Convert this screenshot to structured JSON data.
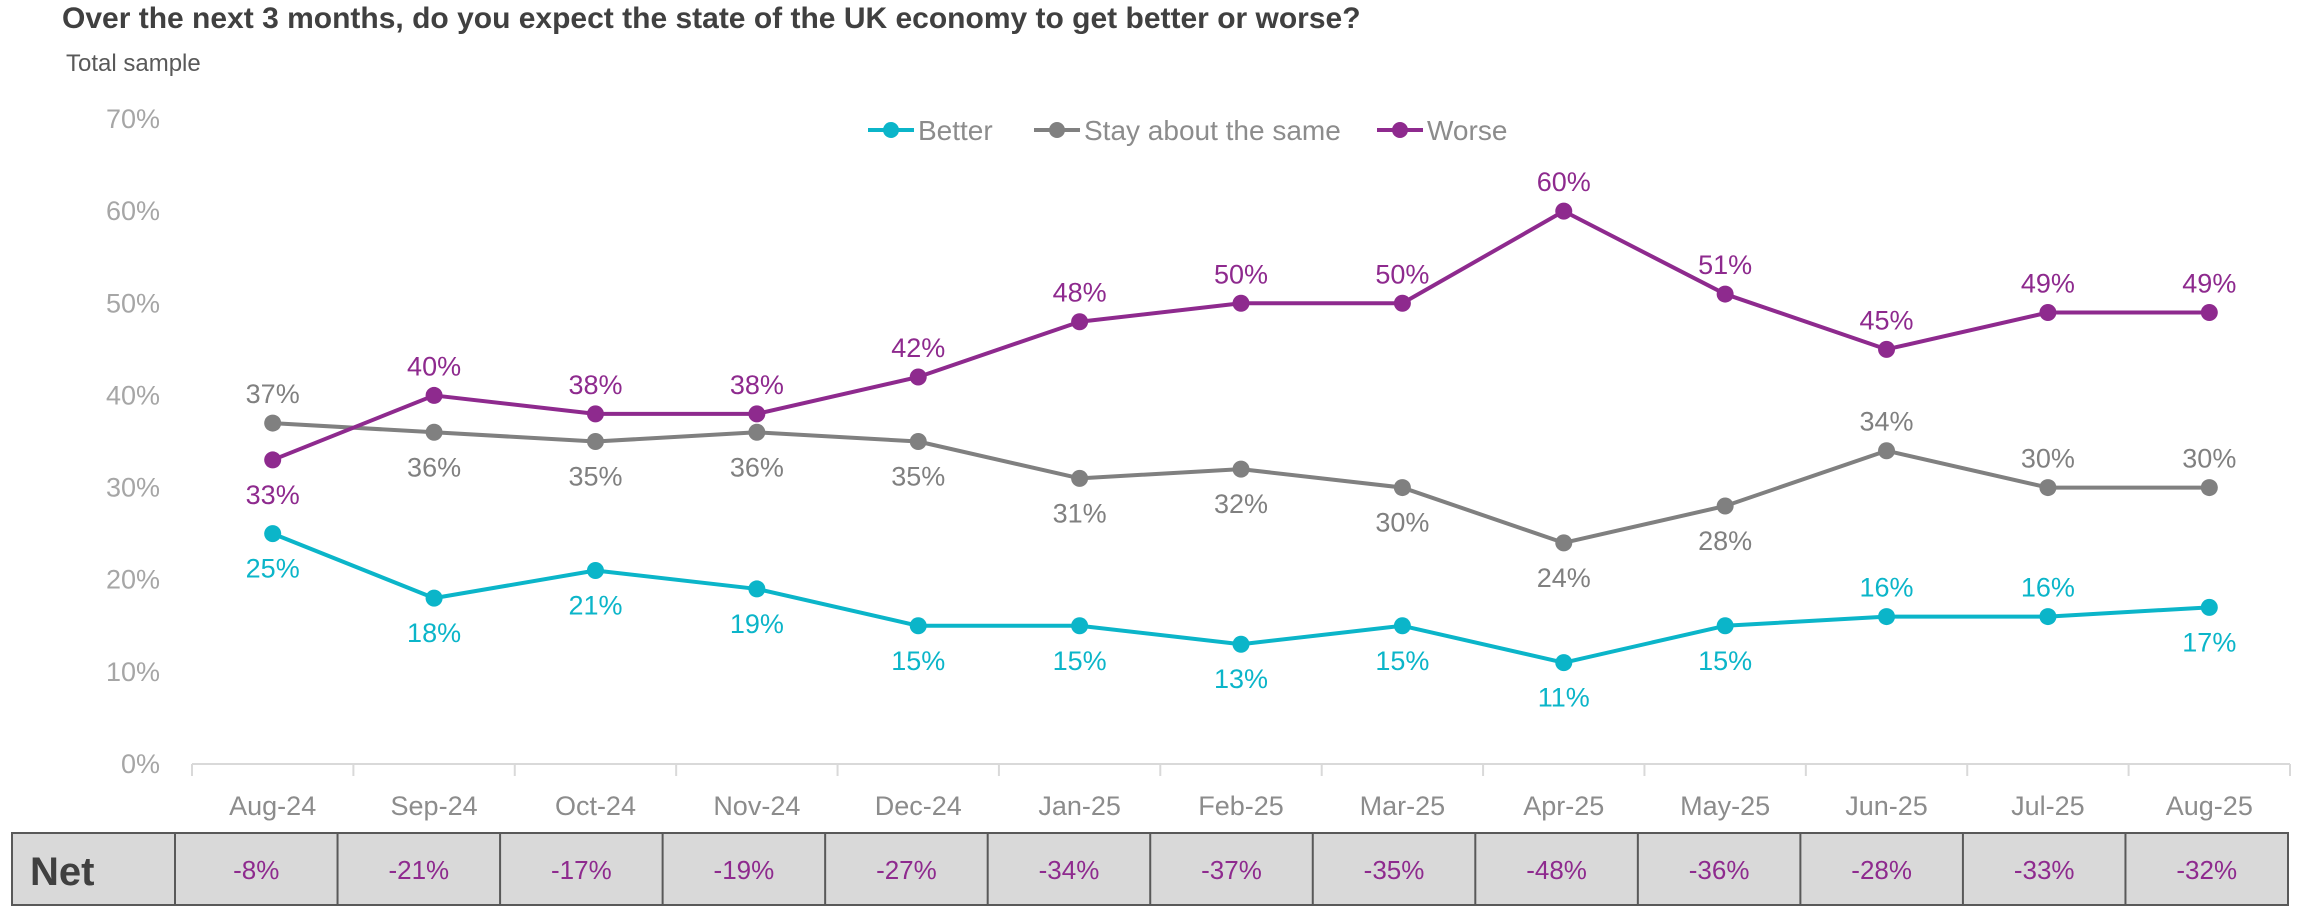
{
  "header": {
    "title": "Over the next 3 months, do you expect the state of the UK economy to get better or worse?",
    "subtitle": "Total sample"
  },
  "colors": {
    "better": "#0bb5c9",
    "same": "#808080",
    "worse": "#8e2a8e",
    "net_text": "#8e2a8e"
  },
  "chart_data": {
    "type": "line",
    "title": "Over the next 3 months, do you expect the state of the UK economy to get better or worse?",
    "subtitle": "Total sample",
    "categories": [
      "Aug-24",
      "Sep-24",
      "Oct-24",
      "Nov-24",
      "Dec-24",
      "Jan-25",
      "Feb-25",
      "Mar-25",
      "Apr-25",
      "May-25",
      "Jun-25",
      "Jul-25",
      "Aug-25"
    ],
    "y_ticks": [
      "0%",
      "10%",
      "20%",
      "30%",
      "40%",
      "50%",
      "60%",
      "70%"
    ],
    "ylim": [
      0,
      70
    ],
    "legend_position": "top-center",
    "series": [
      {
        "key": "better",
        "name": "Better",
        "values": [
          25,
          18,
          21,
          19,
          15,
          15,
          13,
          15,
          11,
          15,
          16,
          16,
          17
        ]
      },
      {
        "key": "same",
        "name": "Stay about the same",
        "values": [
          37,
          36,
          35,
          36,
          35,
          31,
          32,
          30,
          24,
          28,
          34,
          30,
          30
        ]
      },
      {
        "key": "worse",
        "name": "Worse",
        "values": [
          33,
          40,
          38,
          38,
          42,
          48,
          50,
          50,
          60,
          51,
          45,
          49,
          49
        ]
      }
    ],
    "net": {
      "label": "Net",
      "values": [
        "-8%",
        "-21%",
        "-17%",
        "-19%",
        "-27%",
        "-34%",
        "-37%",
        "-35%",
        "-48%",
        "-36%",
        "-28%",
        "-33%",
        "-32%"
      ]
    }
  }
}
